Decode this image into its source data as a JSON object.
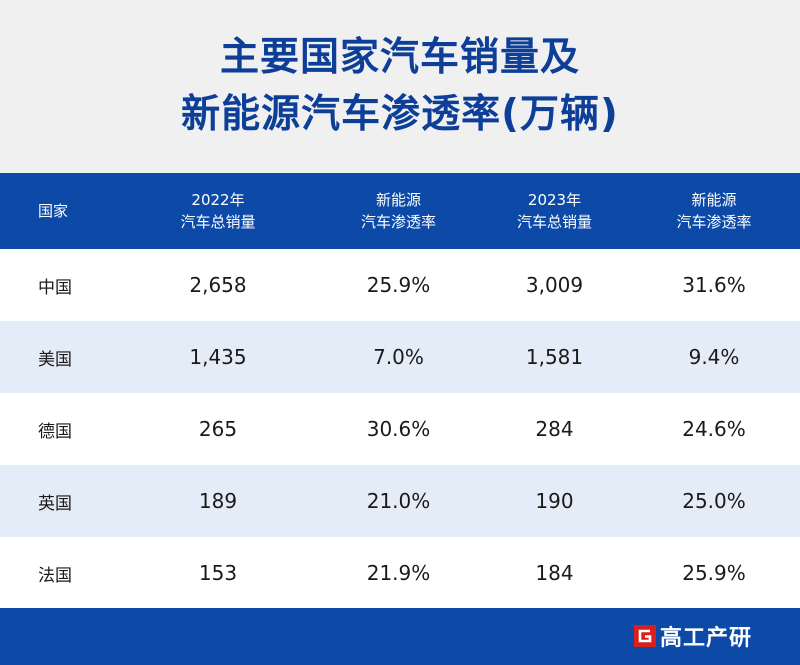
{
  "title": {
    "line1": "主要国家汽车销量及",
    "line2": "新能源汽车渗透率(万辆)"
  },
  "table": {
    "headers": [
      {
        "line1": "国家",
        "line2": ""
      },
      {
        "line1": "2022年",
        "line2": "汽车总销量"
      },
      {
        "line1": "新能源",
        "line2": "汽车渗透率"
      },
      {
        "line1": "2023年",
        "line2": "汽车总销量"
      },
      {
        "line1": "新能源",
        "line2": "汽车渗透率"
      }
    ],
    "rows": [
      [
        "中国",
        "2,658",
        "25.9%",
        "3,009",
        "31.6%"
      ],
      [
        "美国",
        "1,435",
        "7.0%",
        "1,581",
        "9.4%"
      ],
      [
        "德国",
        "265",
        "30.6%",
        "284",
        "24.6%"
      ],
      [
        "英国",
        "189",
        "21.0%",
        "190",
        "25.0%"
      ],
      [
        "法国",
        "153",
        "21.9%",
        "184",
        "25.9%"
      ]
    ]
  },
  "footer": {
    "logo_text": "高工产研",
    "logo_icon": "g-logo-icon"
  },
  "colors": {
    "title": "#0d3f99",
    "header_bg": "#0d4aa8",
    "alt_row_bg": "#e4edf7",
    "logo_red": "#d9201c"
  }
}
